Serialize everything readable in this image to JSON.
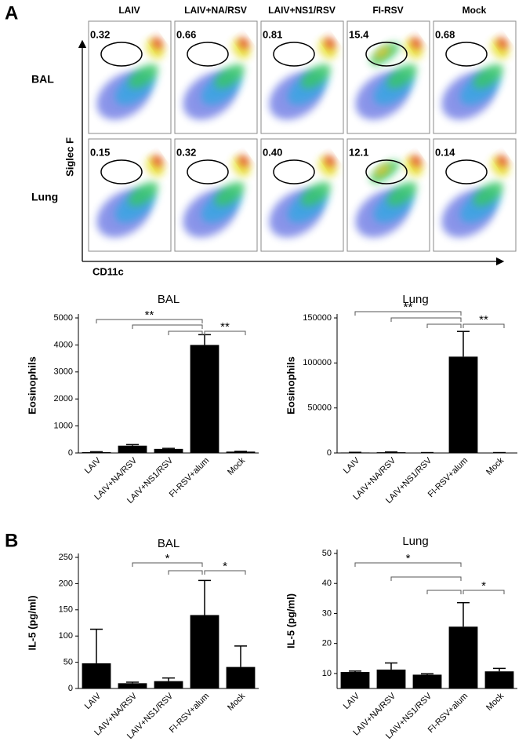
{
  "panel_labels": {
    "a": "A",
    "b": "B"
  },
  "flow": {
    "columns": [
      "LAIV",
      "LAIV+NA/RSV",
      "LAIV+NS1/RSV",
      "FI-RSV",
      "Mock"
    ],
    "rows": [
      {
        "label": "BAL",
        "gates": [
          "0.32",
          "0.66",
          "0.81",
          "15.4",
          "0.68"
        ]
      },
      {
        "label": "Lung",
        "gates": [
          "0.15",
          "0.32",
          "0.40",
          "12.1",
          "0.14"
        ]
      }
    ],
    "y_label": "Siglec F",
    "x_label": "CD11c"
  },
  "chart_data": [
    {
      "type": "bar",
      "title": "BAL",
      "y_label": "Eosinophils",
      "categories": [
        "LAIV",
        "LAIV+NA/RSV",
        "LAIV+NS1/RSV",
        "FI-RSV+alum",
        "Mock"
      ],
      "values": [
        30,
        270,
        150,
        4000,
        50
      ],
      "errors": [
        15,
        40,
        20,
        380,
        10
      ],
      "color": "#000000",
      "ylim": [
        0,
        5000
      ],
      "yticks": [
        0,
        1000,
        2000,
        3000,
        4000,
        5000
      ],
      "annotations": [
        "**",
        "**"
      ]
    },
    {
      "type": "bar",
      "title": "Lung",
      "y_label": "Eosinophils",
      "categories": [
        "LAIV",
        "LAIV+NA/RSV",
        "LAIV+NS1/RSV",
        "FI-RSV+alum",
        "Mock"
      ],
      "values": [
        500,
        800,
        300,
        107000,
        300
      ],
      "errors": [
        200,
        300,
        100,
        28000,
        100
      ],
      "color": "#000000",
      "ylim": [
        0,
        150000
      ],
      "yticks": [
        0,
        50000,
        100000,
        150000
      ],
      "annotations": [
        "**",
        "**"
      ]
    },
    {
      "type": "bar",
      "title": "BAL",
      "y_label": "IL-5 (pg/ml)",
      "categories": [
        "LAIV",
        "LAIV+NA/RSV",
        "LAIV+NS1/RSV",
        "FI-RSV+alum",
        "Mock"
      ],
      "values": [
        48,
        10,
        14,
        140,
        41
      ],
      "errors": [
        65,
        2,
        6,
        66,
        40
      ],
      "color": "#000000",
      "ylim": [
        0,
        250
      ],
      "yticks": [
        0,
        50,
        100,
        150,
        200,
        250
      ],
      "annotations": [
        "*",
        "*"
      ]
    },
    {
      "type": "bar",
      "title": "Lung",
      "y_label": "IL-5 (pg/ml)",
      "categories": [
        "LAIV",
        "LAIV+NA/RSV",
        "LAIV+NS1/RSV",
        "FI-RSV+alum",
        "Mock"
      ],
      "values": [
        10.5,
        11.3,
        9.6,
        25.6,
        10.7
      ],
      "errors": [
        0.3,
        2.2,
        0.3,
        8,
        1
      ],
      "color": "#000000",
      "ylim": [
        5,
        50
      ],
      "yticks": [
        10,
        20,
        30,
        40,
        50
      ],
      "annotations": [
        "*",
        "*"
      ]
    }
  ]
}
